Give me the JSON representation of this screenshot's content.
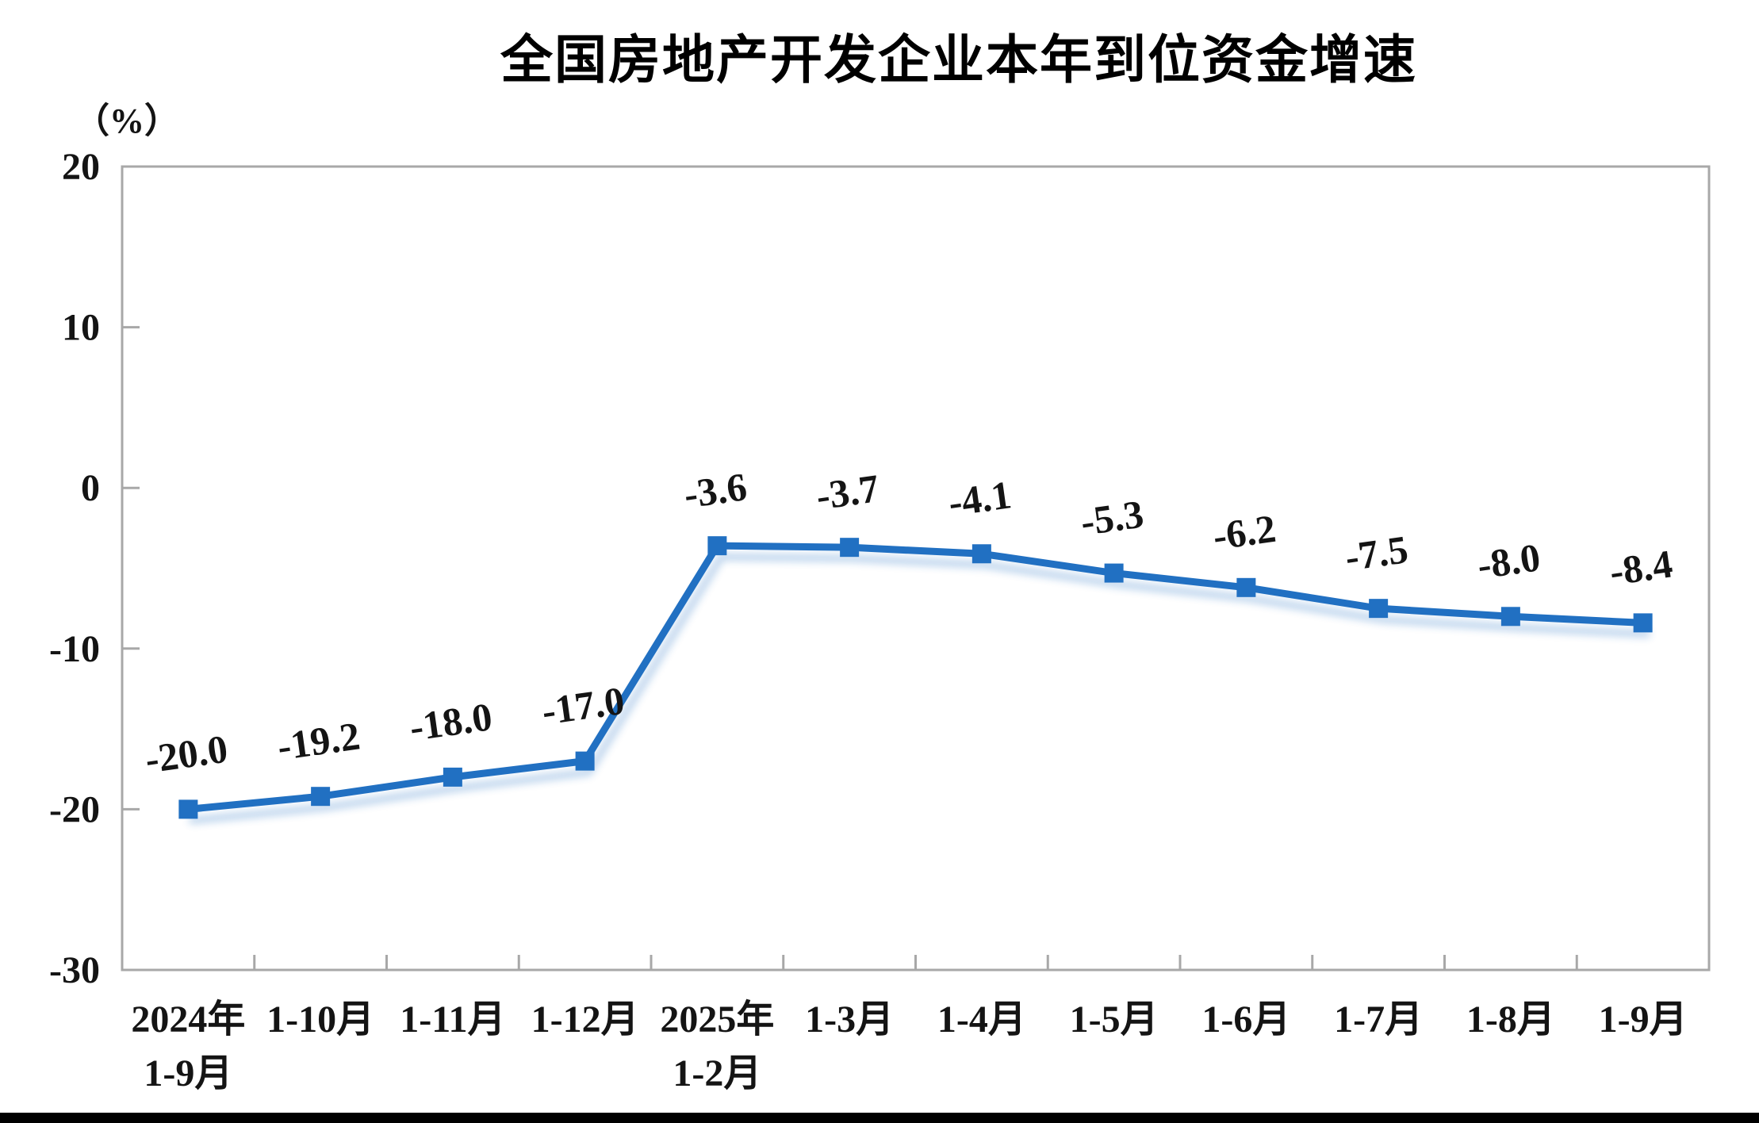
{
  "chart_data": {
    "type": "line",
    "title": "全国房地产开发企业本年到位资金增速",
    "unit_label": "（%）",
    "categories": [
      [
        "2024年",
        "1-9月"
      ],
      [
        "1-10月"
      ],
      [
        "1-11月"
      ],
      [
        "1-12月"
      ],
      [
        "2025年",
        "1-2月"
      ],
      [
        "1-3月"
      ],
      [
        "1-4月"
      ],
      [
        "1-5月"
      ],
      [
        "1-6月"
      ],
      [
        "1-7月"
      ],
      [
        "1-8月"
      ],
      [
        "1-9月"
      ]
    ],
    "values": [
      -20.0,
      -19.2,
      -18.0,
      -17.0,
      -3.6,
      -3.7,
      -4.1,
      -5.3,
      -6.2,
      -7.5,
      -8.0,
      -8.4
    ],
    "data_labels": [
      "-20.0",
      "-19.2",
      "-18.0",
      "-17.0",
      "-3.6",
      "-3.7",
      "-4.1",
      "-5.3",
      "-6.2",
      "-7.5",
      "-8.0",
      "-8.4"
    ],
    "y_ticks": [
      20,
      10,
      0,
      -10,
      -20,
      -30
    ],
    "ylim": [
      -30,
      20
    ],
    "xlabel": "",
    "ylabel": "（%）",
    "grid": false,
    "legend_position": "none",
    "marker": "square",
    "line_color": "#2170C2",
    "axis_color": "#A8A8A8",
    "label_color": "#141414",
    "background_color": "#FFFFFF"
  }
}
